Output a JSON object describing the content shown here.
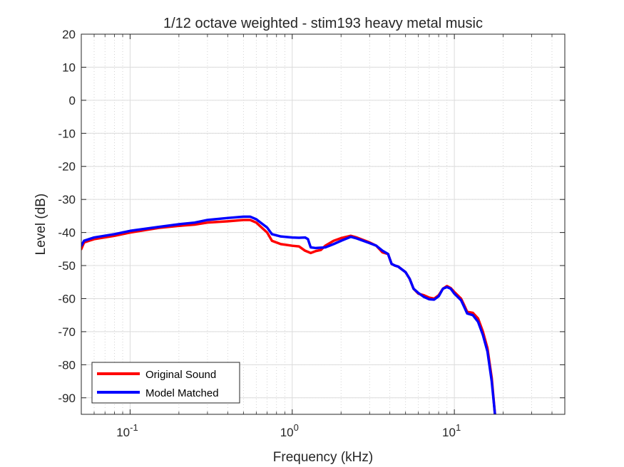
{
  "chart_data": {
    "type": "line",
    "title": "1/12 octave weighted - stim193 heavy metal music",
    "xlabel": "Frequency (kHz)",
    "ylabel": "Level (dB)",
    "xscale": "log",
    "xlim": [
      0.05,
      48
    ],
    "ylim": [
      -95,
      20
    ],
    "grid": true,
    "minor_grid": true,
    "legend_position": "bottom-left",
    "x_ticks": [
      {
        "value": 0.1,
        "base": "10",
        "exp": "-1"
      },
      {
        "value": 1,
        "base": "10",
        "exp": "0"
      },
      {
        "value": 10,
        "base": "10",
        "exp": "1"
      }
    ],
    "y_ticks": [
      20,
      10,
      0,
      -10,
      -20,
      -30,
      -40,
      -50,
      -60,
      -70,
      -80,
      -90
    ],
    "series": [
      {
        "name": "Original Sound",
        "color": "#ff0000",
        "points": [
          [
            0.05,
            -45
          ],
          [
            0.052,
            -43
          ],
          [
            0.06,
            -42
          ],
          [
            0.08,
            -41
          ],
          [
            0.1,
            -40
          ],
          [
            0.15,
            -38.6
          ],
          [
            0.2,
            -38
          ],
          [
            0.25,
            -37.6
          ],
          [
            0.3,
            -37
          ],
          [
            0.4,
            -36.6
          ],
          [
            0.5,
            -36.2
          ],
          [
            0.55,
            -36.2
          ],
          [
            0.6,
            -37
          ],
          [
            0.7,
            -40
          ],
          [
            0.75,
            -42.5
          ],
          [
            0.85,
            -43.5
          ],
          [
            1.0,
            -44
          ],
          [
            1.1,
            -44.2
          ],
          [
            1.2,
            -45.5
          ],
          [
            1.3,
            -46.2
          ],
          [
            1.4,
            -45.6
          ],
          [
            1.5,
            -45.3
          ],
          [
            1.6,
            -44
          ],
          [
            1.8,
            -42.5
          ],
          [
            2.0,
            -41.7
          ],
          [
            2.3,
            -41
          ],
          [
            2.5,
            -41.5
          ],
          [
            3.0,
            -43
          ],
          [
            3.3,
            -44
          ],
          [
            3.6,
            -46
          ],
          [
            3.9,
            -46.5
          ],
          [
            4.1,
            -49.5
          ],
          [
            4.3,
            -50
          ],
          [
            4.5,
            -50.3
          ],
          [
            5.0,
            -52
          ],
          [
            5.3,
            -54
          ],
          [
            5.6,
            -57
          ],
          [
            6.0,
            -58.5
          ],
          [
            6.5,
            -59
          ],
          [
            7.0,
            -59.7
          ],
          [
            7.5,
            -60
          ],
          [
            8.0,
            -59
          ],
          [
            8.5,
            -57
          ],
          [
            9.0,
            -56.2
          ],
          [
            9.5,
            -56.8
          ],
          [
            10,
            -58
          ],
          [
            11,
            -60
          ],
          [
            11.5,
            -62
          ],
          [
            12,
            -64
          ],
          [
            13,
            -64.3
          ],
          [
            14,
            -66
          ],
          [
            15,
            -70
          ],
          [
            16,
            -75
          ],
          [
            17,
            -84
          ],
          [
            17.8,
            -95
          ]
        ]
      },
      {
        "name": "Model Matched",
        "color": "#0000ff",
        "points": [
          [
            0.05,
            -44
          ],
          [
            0.052,
            -42.5
          ],
          [
            0.06,
            -41.5
          ],
          [
            0.08,
            -40.5
          ],
          [
            0.1,
            -39.5
          ],
          [
            0.15,
            -38.3
          ],
          [
            0.2,
            -37.5
          ],
          [
            0.25,
            -37
          ],
          [
            0.3,
            -36.2
          ],
          [
            0.4,
            -35.6
          ],
          [
            0.5,
            -35.2
          ],
          [
            0.55,
            -35.2
          ],
          [
            0.6,
            -36
          ],
          [
            0.7,
            -38.5
          ],
          [
            0.75,
            -40.5
          ],
          [
            0.85,
            -41.2
          ],
          [
            1.0,
            -41.5
          ],
          [
            1.1,
            -41.6
          ],
          [
            1.2,
            -41.5
          ],
          [
            1.25,
            -42
          ],
          [
            1.3,
            -44.5
          ],
          [
            1.4,
            -44.7
          ],
          [
            1.6,
            -44.5
          ],
          [
            1.8,
            -43.5
          ],
          [
            2.0,
            -42.5
          ],
          [
            2.3,
            -41.3
          ],
          [
            2.5,
            -41.8
          ],
          [
            3.0,
            -43.2
          ],
          [
            3.3,
            -44
          ],
          [
            3.6,
            -45.5
          ],
          [
            3.9,
            -46.5
          ],
          [
            4.1,
            -49.5
          ],
          [
            4.3,
            -50
          ],
          [
            4.5,
            -50.3
          ],
          [
            5.0,
            -52
          ],
          [
            5.3,
            -54
          ],
          [
            5.6,
            -57
          ],
          [
            6.0,
            -58.3
          ],
          [
            6.5,
            -59.5
          ],
          [
            7.0,
            -60.2
          ],
          [
            7.5,
            -60.3
          ],
          [
            8.0,
            -59.3
          ],
          [
            8.5,
            -57
          ],
          [
            9.0,
            -56.5
          ],
          [
            9.5,
            -57
          ],
          [
            10,
            -58.5
          ],
          [
            11,
            -60.5
          ],
          [
            11.5,
            -62.5
          ],
          [
            12,
            -64.5
          ],
          [
            13,
            -65
          ],
          [
            14,
            -67
          ],
          [
            15,
            -71
          ],
          [
            16,
            -76
          ],
          [
            17,
            -85
          ],
          [
            17.8,
            -95
          ]
        ]
      }
    ]
  }
}
